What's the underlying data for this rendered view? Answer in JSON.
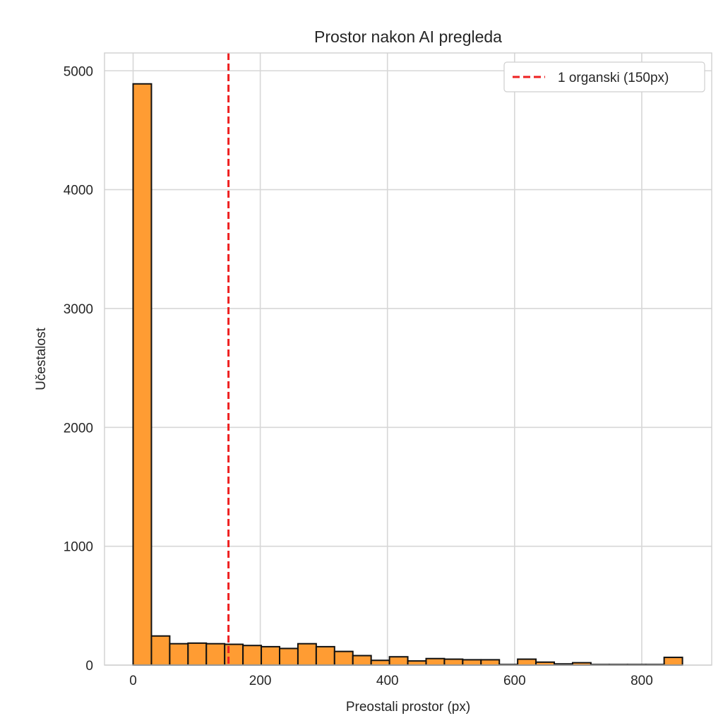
{
  "chart_data": {
    "type": "bar",
    "title": "Prostor nakon AI pregleda",
    "xlabel": "Preostali prostor (px)",
    "ylabel": "Učestalost",
    "xlim": [
      -45,
      910
    ],
    "ylim": [
      0,
      5150
    ],
    "x_ticks": [
      0,
      200,
      400,
      600,
      800
    ],
    "y_ticks": [
      0,
      1000,
      2000,
      3000,
      4000,
      5000
    ],
    "grid": true,
    "bar_color": "#ff9c33",
    "bar_edge_color": "#111111",
    "bin_width": 28.8,
    "bin_start": 0,
    "values": [
      4890,
      245,
      180,
      185,
      180,
      175,
      165,
      155,
      140,
      180,
      155,
      115,
      80,
      40,
      70,
      35,
      55,
      50,
      45,
      45,
      5,
      50,
      25,
      10,
      20,
      5,
      5,
      5,
      5,
      65
    ],
    "reference_line": {
      "x": 150,
      "color": "#ee2020",
      "style": "dashed",
      "label": "1 organski (150px)"
    },
    "legend_position": "top-right"
  }
}
